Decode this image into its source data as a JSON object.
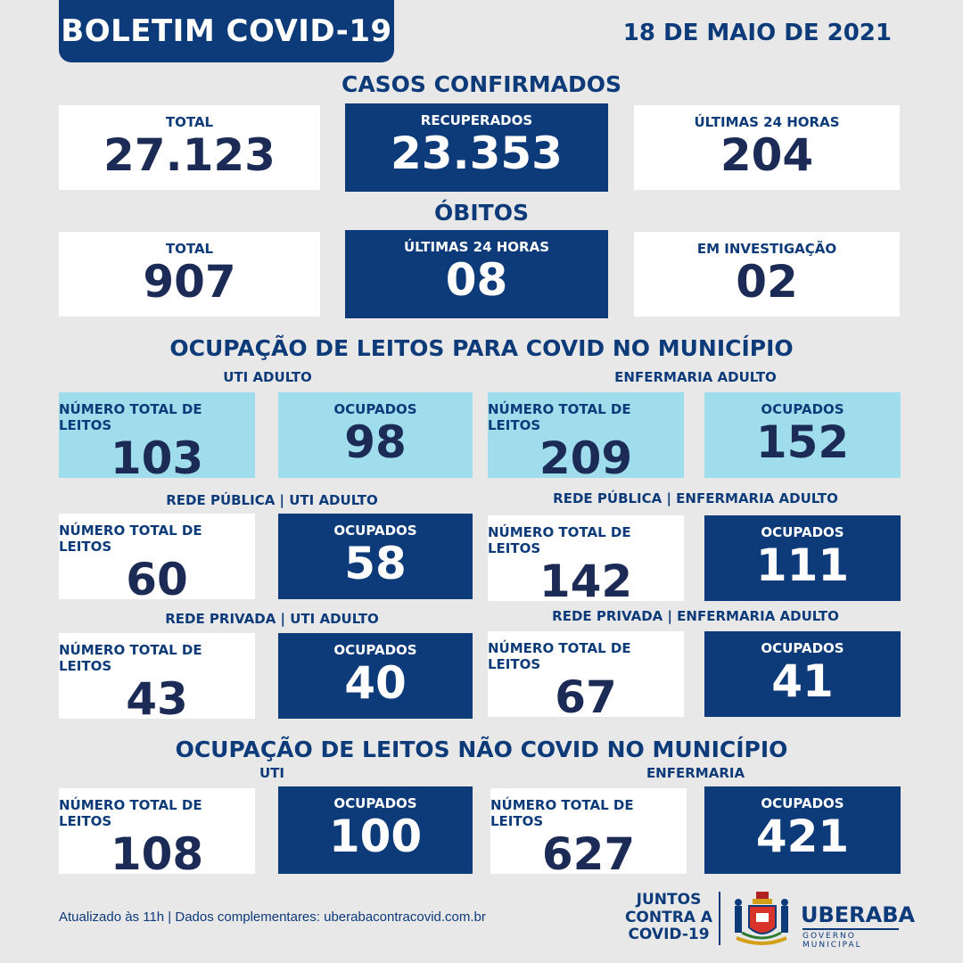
{
  "header": {
    "title": "BOLETIM COVID-19",
    "date": "18 DE MAIO DE 2021"
  },
  "casos": {
    "title": "CASOS CONFIRMADOS",
    "cards": [
      {
        "label": "TOTAL",
        "value": "27.123"
      },
      {
        "label": "RECUPERADOS",
        "value": "23.353"
      },
      {
        "label": "ÚLTIMAS 24 HORAS",
        "value": "204"
      }
    ]
  },
  "obitos": {
    "title": "ÓBITOS",
    "cards": [
      {
        "label": "TOTAL",
        "value": "907"
      },
      {
        "label": "ÚLTIMAS 24 HORAS",
        "value": "08"
      },
      {
        "label": "EM INVESTIGAÇÃO",
        "value": "02"
      }
    ]
  },
  "covid_leitos": {
    "title": "OCUPAÇÃO DE LEITOS PARA COVID NO MUNICÍPIO",
    "uti_label": "UTI ADULTO",
    "enf_label": "ENFERMARIA ADULTO",
    "uti": {
      "total_label": "NÚMERO TOTAL DE LEITOS",
      "total": "103",
      "ocup_label": "OCUPADOS",
      "ocup": "98"
    },
    "enf": {
      "total_label": "NÚMERO TOTAL DE LEITOS",
      "total": "209",
      "ocup_label": "OCUPADOS",
      "ocup": "152"
    },
    "publica_uti_label": "REDE PÚBLICA | UTI ADULTO",
    "publica_enf_label": "REDE PÚBLICA | ENFERMARIA ADULTO",
    "publica_uti": {
      "total_label": "NÚMERO TOTAL DE LEITOS",
      "total": "60",
      "ocup_label": "OCUPADOS",
      "ocup": "58"
    },
    "publica_enf": {
      "total_label": "NÚMERO TOTAL DE LEITOS",
      "total": "142",
      "ocup_label": "OCUPADOS",
      "ocup": "111"
    },
    "privada_uti_label": "REDE PRIVADA | UTI ADULTO",
    "privada_enf_label": "REDE PRIVADA | ENFERMARIA ADULTO",
    "privada_uti": {
      "total_label": "NÚMERO TOTAL DE LEITOS",
      "total": "43",
      "ocup_label": "OCUPADOS",
      "ocup": "40"
    },
    "privada_enf": {
      "total_label": "NÚMERO TOTAL DE LEITOS",
      "total": "67",
      "ocup_label": "OCUPADOS",
      "ocup": "41"
    }
  },
  "nao_covid": {
    "title": "OCUPAÇÃO DE LEITOS NÃO COVID NO MUNICÍPIO",
    "uti_label": "UTI",
    "enf_label": "ENFERMARIA",
    "uti": {
      "total_label": "NÚMERO TOTAL DE LEITOS",
      "total": "108",
      "ocup_label": "OCUPADOS",
      "ocup": "100"
    },
    "enf": {
      "total_label": "NÚMERO TOTAL DE LEITOS",
      "total": "627",
      "ocup_label": "OCUPADOS",
      "ocup": "421"
    }
  },
  "footer": {
    "text": "Atualizado às 11h | Dados complementares: uberabacontracovid.com.br",
    "slogan_1": "JUNTOS",
    "slogan_2": "CONTRA A",
    "slogan_3": "COVID-19",
    "brand": "UBERABA",
    "brand_sub": "GOVERNO MUNICIPAL"
  },
  "colors": {
    "navy": "#0d3b7a",
    "light_blue": "#9fdcec",
    "white": "#ffffff",
    "background": "#e8e8e8"
  }
}
